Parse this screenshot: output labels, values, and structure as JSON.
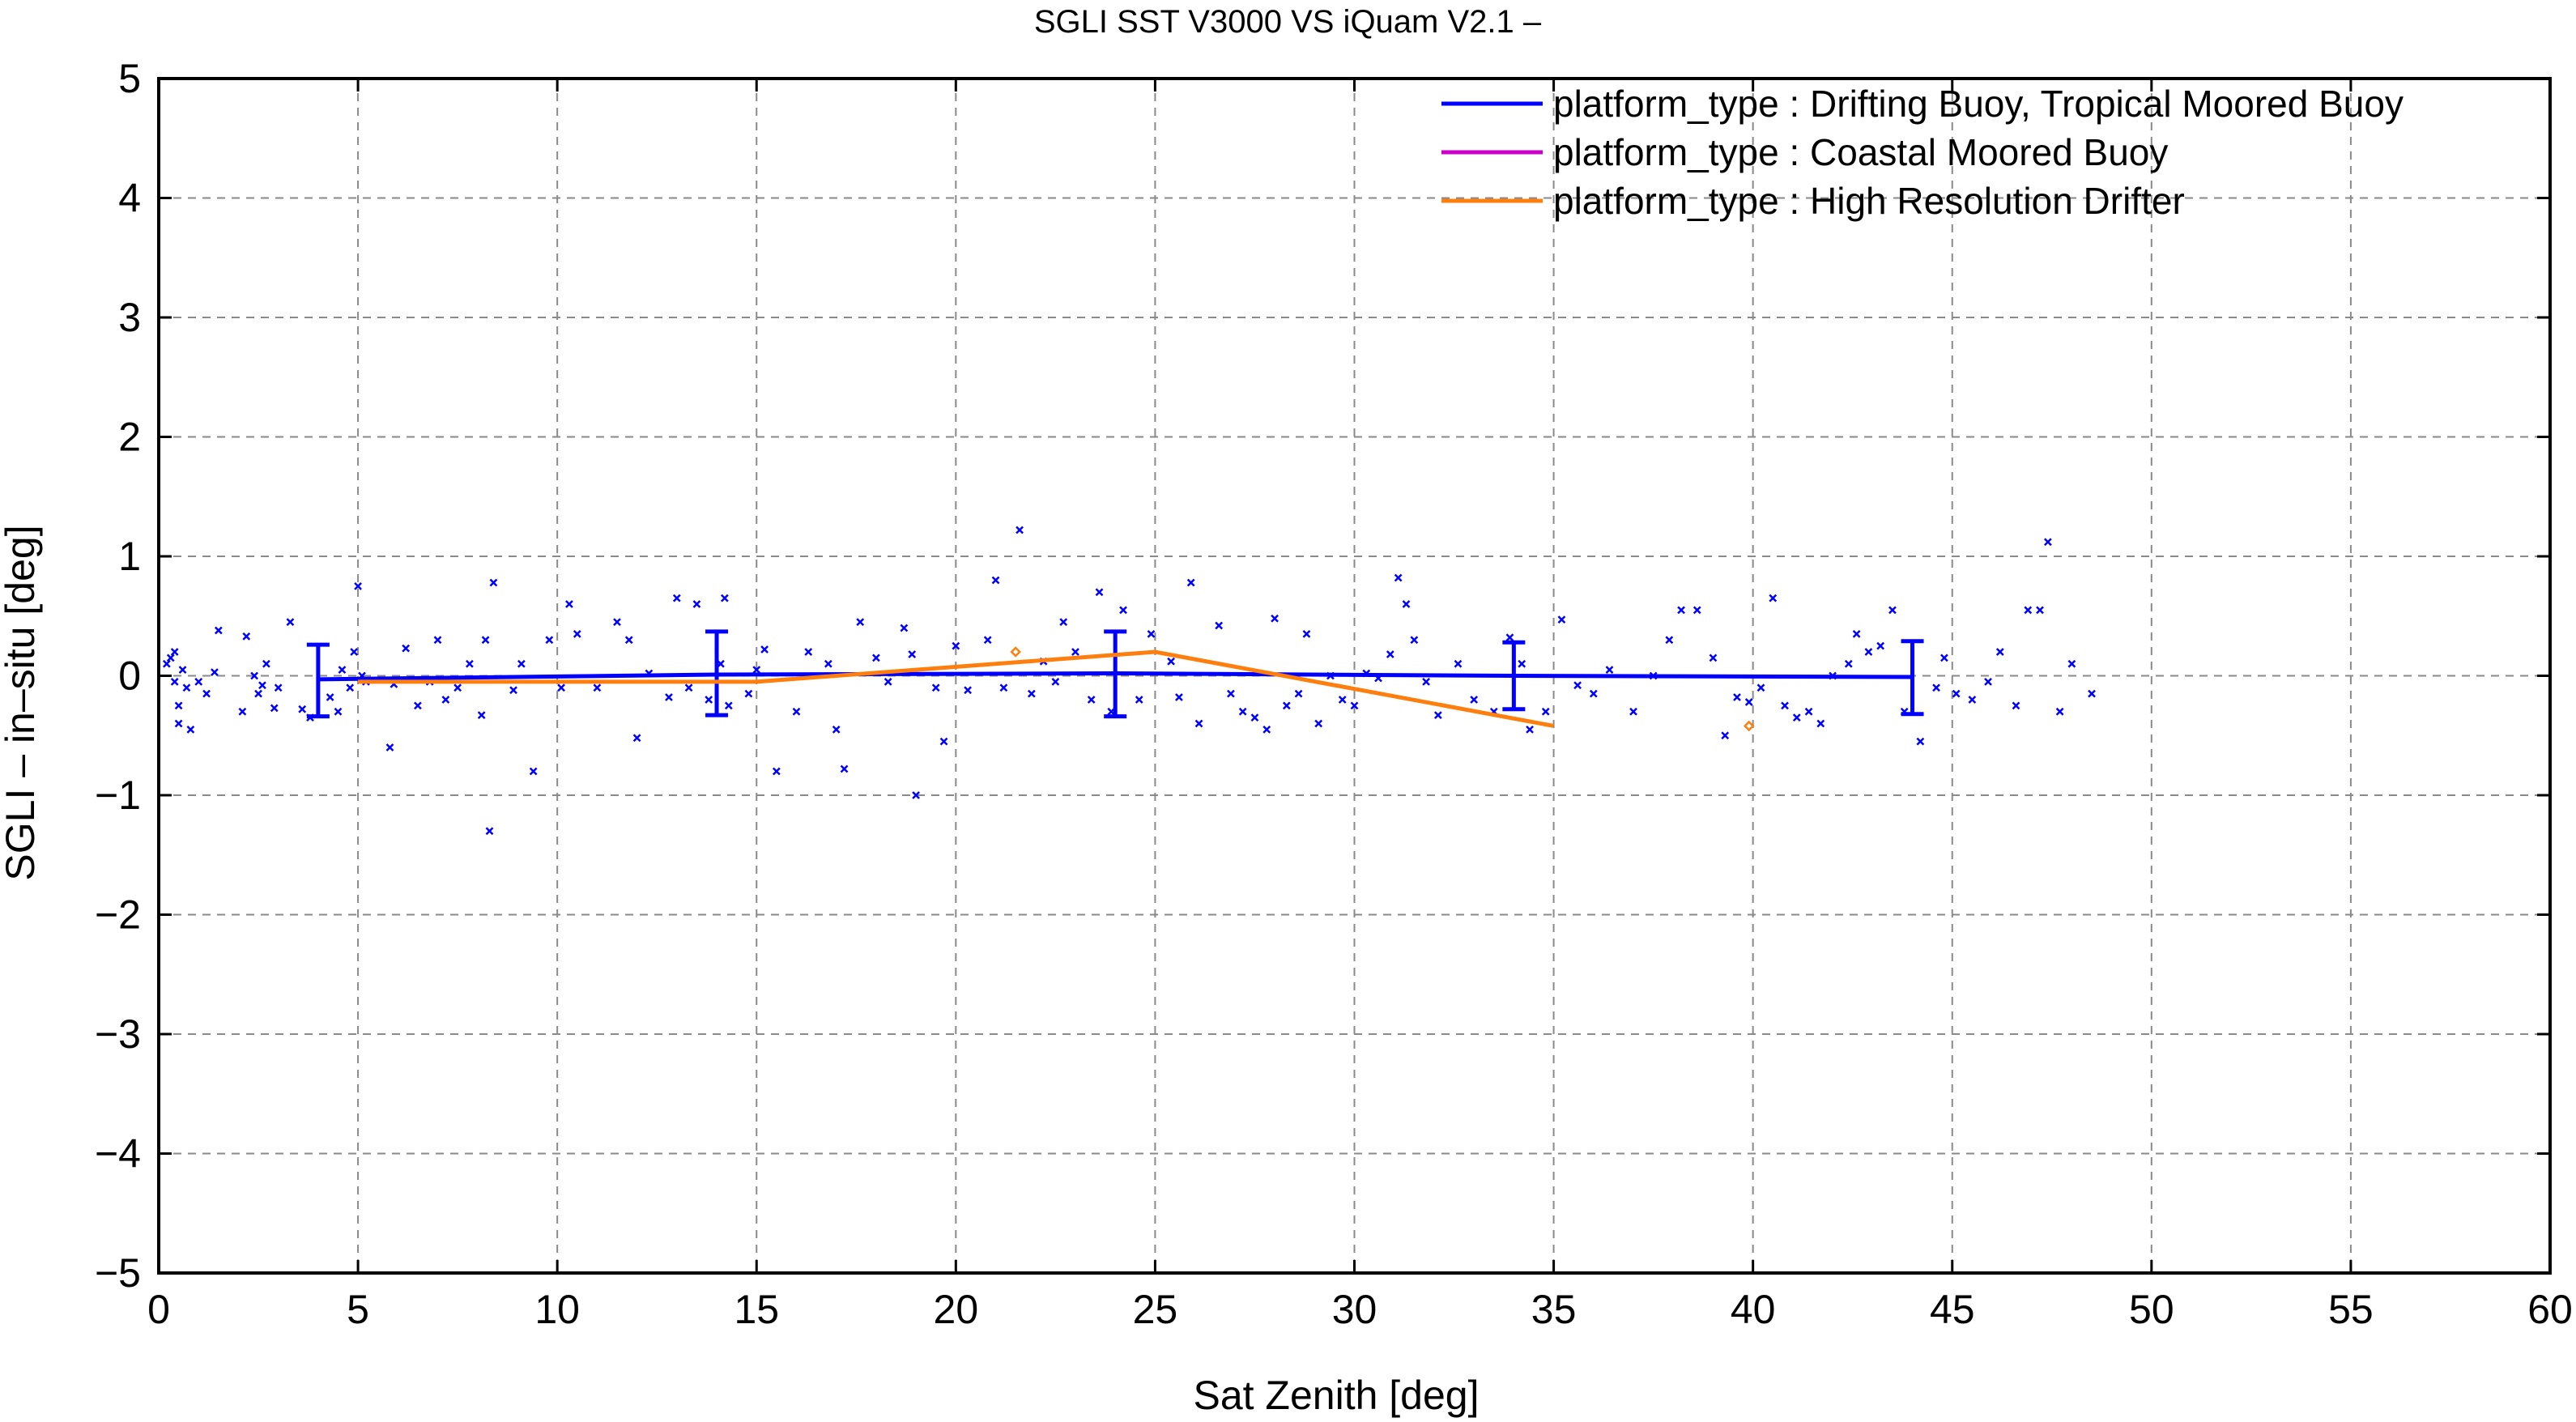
{
  "chart_data": {
    "type": "scatter",
    "title": "SGLI SST V3000 VS iQuam V2.1  –",
    "xlabel": "Sat Zenith [deg]",
    "ylabel": "SGLI – in–situ [deg]",
    "xlim": [
      0,
      60
    ],
    "ylim": [
      -5,
      5
    ],
    "x_ticks": [
      0,
      5,
      10,
      15,
      20,
      25,
      30,
      35,
      40,
      45,
      50,
      55,
      60
    ],
    "y_ticks": [
      5,
      4,
      3,
      2,
      1,
      0,
      -1,
      -2,
      -3,
      -4,
      -5
    ],
    "y_tick_labels": [
      "5",
      "4",
      "3",
      "2",
      "1",
      "0",
      "−1",
      "−2",
      "−3",
      "−4",
      "−5"
    ],
    "grid": true,
    "legend_position": "top-right",
    "series": [
      {
        "name": "platform_type : Drifting Buoy, Tropical Moored Buoy",
        "color": "#0000ff",
        "marker": "x",
        "mean_line": {
          "x": [
            4,
            14,
            24,
            34,
            44
          ],
          "y": [
            -0.03,
            0.01,
            0.02,
            0.0,
            -0.01
          ]
        },
        "error_bars": [
          {
            "x": 4,
            "low": -0.34,
            "high": 0.26
          },
          {
            "x": 14,
            "low": -0.33,
            "high": 0.37
          },
          {
            "x": 24,
            "low": -0.34,
            "high": 0.37
          },
          {
            "x": 34,
            "low": -0.28,
            "high": 0.28
          },
          {
            "x": 44,
            "low": -0.32,
            "high": 0.29
          }
        ],
        "points": [
          [
            0.2,
            0.1
          ],
          [
            0.3,
            0.15
          ],
          [
            0.4,
            -0.05
          ],
          [
            0.4,
            0.2
          ],
          [
            0.5,
            -0.25
          ],
          [
            0.5,
            -0.4
          ],
          [
            0.6,
            0.05
          ],
          [
            0.7,
            -0.1
          ],
          [
            0.8,
            -0.45
          ],
          [
            1.0,
            -0.05
          ],
          [
            1.2,
            -0.15
          ],
          [
            1.4,
            0.03
          ],
          [
            1.5,
            0.38
          ],
          [
            2.1,
            -0.3
          ],
          [
            2.2,
            0.33
          ],
          [
            2.4,
            0.0
          ],
          [
            2.5,
            -0.15
          ],
          [
            2.6,
            -0.08
          ],
          [
            2.7,
            0.1
          ],
          [
            2.9,
            -0.27
          ],
          [
            3.0,
            -0.1
          ],
          [
            3.3,
            0.45
          ],
          [
            3.6,
            -0.28
          ],
          [
            3.8,
            -0.35
          ],
          [
            4.3,
            -0.18
          ],
          [
            4.5,
            -0.3
          ],
          [
            4.6,
            0.05
          ],
          [
            4.8,
            -0.1
          ],
          [
            4.9,
            0.2
          ],
          [
            5.0,
            0.75
          ],
          [
            5.1,
            0.0
          ],
          [
            5.2,
            -0.05
          ],
          [
            5.8,
            -0.6
          ],
          [
            5.9,
            -0.07
          ],
          [
            6.2,
            0.23
          ],
          [
            6.5,
            -0.25
          ],
          [
            6.8,
            -0.05
          ],
          [
            7.0,
            0.3
          ],
          [
            7.2,
            -0.2
          ],
          [
            7.5,
            -0.1
          ],
          [
            7.8,
            0.1
          ],
          [
            8.1,
            -0.33
          ],
          [
            8.2,
            0.3
          ],
          [
            8.3,
            -1.3
          ],
          [
            8.4,
            0.78
          ],
          [
            8.9,
            -0.12
          ],
          [
            9.1,
            0.1
          ],
          [
            9.4,
            -0.8
          ],
          [
            9.8,
            0.3
          ],
          [
            10.1,
            -0.1
          ],
          [
            10.3,
            0.6
          ],
          [
            10.5,
            0.35
          ],
          [
            11.0,
            -0.1
          ],
          [
            11.5,
            0.45
          ],
          [
            11.8,
            0.3
          ],
          [
            12.0,
            -0.52
          ],
          [
            12.3,
            0.02
          ],
          [
            12.8,
            -0.18
          ],
          [
            13.0,
            0.65
          ],
          [
            13.3,
            -0.1
          ],
          [
            13.5,
            0.6
          ],
          [
            13.8,
            -0.2
          ],
          [
            14.1,
            0.1
          ],
          [
            14.2,
            0.65
          ],
          [
            14.3,
            -0.25
          ],
          [
            14.8,
            -0.15
          ],
          [
            15.0,
            0.05
          ],
          [
            15.2,
            0.22
          ],
          [
            15.5,
            -0.8
          ],
          [
            16.0,
            -0.3
          ],
          [
            16.3,
            0.2
          ],
          [
            16.8,
            0.1
          ],
          [
            17.0,
            -0.45
          ],
          [
            17.2,
            -0.78
          ],
          [
            17.6,
            0.45
          ],
          [
            18.0,
            0.15
          ],
          [
            18.3,
            -0.05
          ],
          [
            18.7,
            0.4
          ],
          [
            18.9,
            0.18
          ],
          [
            19.0,
            -1.0
          ],
          [
            19.5,
            -0.1
          ],
          [
            19.7,
            -0.55
          ],
          [
            20.0,
            0.25
          ],
          [
            20.3,
            -0.12
          ],
          [
            20.8,
            0.3
          ],
          [
            21.0,
            0.8
          ],
          [
            21.2,
            -0.1
          ],
          [
            21.6,
            1.22
          ],
          [
            21.9,
            -0.15
          ],
          [
            22.2,
            0.12
          ],
          [
            22.5,
            -0.05
          ],
          [
            22.7,
            0.45
          ],
          [
            23.0,
            0.2
          ],
          [
            23.4,
            -0.2
          ],
          [
            23.6,
            0.7
          ],
          [
            23.9,
            -0.3
          ],
          [
            24.2,
            0.55
          ],
          [
            24.6,
            -0.2
          ],
          [
            24.9,
            0.35
          ],
          [
            25.4,
            0.12
          ],
          [
            25.6,
            -0.18
          ],
          [
            25.9,
            0.78
          ],
          [
            26.1,
            -0.4
          ],
          [
            26.6,
            0.42
          ],
          [
            26.9,
            -0.15
          ],
          [
            27.2,
            -0.3
          ],
          [
            27.5,
            -0.35
          ],
          [
            27.8,
            -0.45
          ],
          [
            28.0,
            0.48
          ],
          [
            28.3,
            -0.25
          ],
          [
            28.6,
            -0.15
          ],
          [
            28.8,
            0.35
          ],
          [
            29.1,
            -0.4
          ],
          [
            29.4,
            0.0
          ],
          [
            29.7,
            -0.2
          ],
          [
            30.0,
            -0.25
          ],
          [
            30.3,
            0.02
          ],
          [
            30.6,
            -0.02
          ],
          [
            30.9,
            0.18
          ],
          [
            31.1,
            0.82
          ],
          [
            31.3,
            0.6
          ],
          [
            31.5,
            0.3
          ],
          [
            31.8,
            -0.05
          ],
          [
            32.1,
            -0.33
          ],
          [
            32.6,
            0.1
          ],
          [
            33.0,
            -0.2
          ],
          [
            33.5,
            -0.3
          ],
          [
            33.9,
            0.32
          ],
          [
            34.2,
            0.1
          ],
          [
            34.4,
            -0.45
          ],
          [
            34.8,
            -0.3
          ],
          [
            35.2,
            0.47
          ],
          [
            35.6,
            -0.08
          ],
          [
            36.0,
            -0.15
          ],
          [
            36.4,
            0.05
          ],
          [
            37.0,
            -0.3
          ],
          [
            37.5,
            0.0
          ],
          [
            37.9,
            0.3
          ],
          [
            38.2,
            0.55
          ],
          [
            38.6,
            0.55
          ],
          [
            39.0,
            0.15
          ],
          [
            39.3,
            -0.5
          ],
          [
            39.6,
            -0.18
          ],
          [
            39.9,
            -0.22
          ],
          [
            40.2,
            -0.1
          ],
          [
            40.5,
            0.65
          ],
          [
            40.8,
            -0.25
          ],
          [
            41.1,
            -0.35
          ],
          [
            41.4,
            -0.3
          ],
          [
            41.7,
            -0.4
          ],
          [
            42.0,
            0.0
          ],
          [
            42.4,
            0.1
          ],
          [
            42.6,
            0.35
          ],
          [
            42.9,
            0.2
          ],
          [
            43.2,
            0.25
          ],
          [
            43.5,
            0.55
          ],
          [
            43.8,
            -0.3
          ],
          [
            44.2,
            -0.55
          ],
          [
            44.6,
            -0.1
          ],
          [
            44.8,
            0.15
          ],
          [
            45.1,
            -0.15
          ],
          [
            45.5,
            -0.2
          ],
          [
            45.9,
            -0.05
          ],
          [
            46.2,
            0.2
          ],
          [
            46.6,
            -0.25
          ],
          [
            46.9,
            0.55
          ],
          [
            47.2,
            0.55
          ],
          [
            47.4,
            1.12
          ],
          [
            47.7,
            -0.3
          ],
          [
            48.0,
            0.1
          ],
          [
            48.5,
            -0.15
          ]
        ]
      },
      {
        "name": "platform_type : Coastal Moored Buoy",
        "color": "#cc00cc",
        "marker": "x",
        "points": []
      },
      {
        "name": "platform_type : High Resolution Drifter",
        "color": "#ff7f0e",
        "marker": "diamond",
        "mean_line": {
          "x": [
            5,
            15,
            25,
            35
          ],
          "y": [
            -0.05,
            -0.05,
            0.2,
            -0.42
          ]
        },
        "points": [
          [
            21.5,
            0.2
          ],
          [
            39.9,
            -0.42
          ]
        ]
      }
    ]
  }
}
